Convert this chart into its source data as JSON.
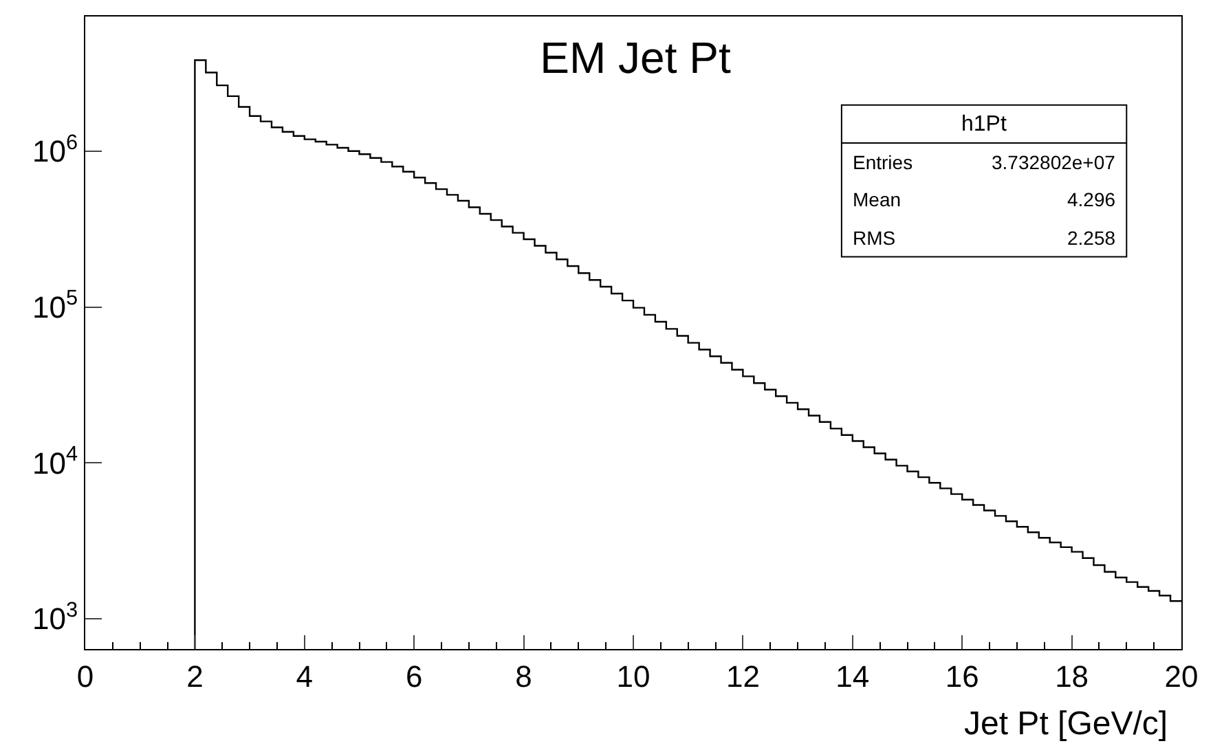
{
  "chart_data": {
    "type": "histogram",
    "title": "EM Jet Pt",
    "xlabel": "Jet Pt [GeV/c]",
    "bins": [
      2.0,
      2.2,
      2.4,
      2.6,
      2.8,
      3.0,
      3.2,
      3.4,
      3.6,
      3.8,
      4.0,
      4.2,
      4.4,
      4.6,
      4.8,
      5.0,
      5.2,
      5.4,
      5.6,
      5.8,
      6.0,
      6.2,
      6.4,
      6.6,
      6.8,
      7.0,
      7.2,
      7.4,
      7.6,
      7.8,
      8.0,
      8.2,
      8.4,
      8.6,
      8.8,
      9.0,
      9.2,
      9.4,
      9.6,
      9.8,
      10.0,
      10.2,
      10.4,
      10.6,
      10.8,
      11.0,
      11.2,
      11.4,
      11.6,
      11.8,
      12.0,
      12.2,
      12.4,
      12.6,
      12.8,
      13.0,
      13.2,
      13.4,
      13.6,
      13.8,
      14.0,
      14.2,
      14.4,
      14.6,
      14.8,
      15.0,
      15.2,
      15.4,
      15.6,
      15.8,
      16.0,
      16.2,
      16.4,
      16.6,
      16.8,
      17.0,
      17.2,
      17.4,
      17.6,
      17.8,
      18.0,
      18.2,
      18.4,
      18.6,
      18.8,
      19.0,
      19.2,
      19.4,
      19.6,
      19.8,
      20.0
    ],
    "values": [
      3830000,
      3190000,
      2640000,
      2250000,
      1920000,
      1680000,
      1550000,
      1420000,
      1330000,
      1250000,
      1190000,
      1150000,
      1100000,
      1050000,
      1000000,
      955000,
      904000,
      851000,
      796000,
      738000,
      676000,
      624000,
      570000,
      524000,
      480000,
      436000,
      396000,
      361000,
      328000,
      299000,
      272000,
      247000,
      223000,
      202000,
      183000,
      165000,
      149000,
      135000,
      122000,
      110000,
      98900,
      89100,
      80400,
      72400,
      65300,
      58900,
      53300,
      48300,
      43800,
      39600,
      35900,
      32500,
      29500,
      26800,
      24300,
      22100,
      20100,
      18300,
      16600,
      15100,
      13800,
      12600,
      11500,
      10500,
      9590,
      8810,
      8090,
      7450,
      6860,
      6310,
      5810,
      5370,
      4950,
      4570,
      4220,
      3890,
      3590,
      3310,
      3090,
      2880,
      2690,
      2450,
      2210,
      2000,
      1840,
      1720,
      1600,
      1510,
      1410,
      1300
    ],
    "color": "#000000",
    "log": "y",
    "xlim": [
      0,
      20
    ],
    "xticks": [
      0,
      2,
      4,
      6,
      8,
      10,
      12,
      14,
      16,
      18,
      20
    ],
    "ylim": [
      640,
      7300000
    ],
    "yticks": [
      {
        "value": 1000,
        "label": "10$^{3}$"
      },
      {
        "value": 10000,
        "label": "10$^{4}$"
      },
      {
        "value": 100000,
        "label": "10$^{5}$"
      },
      {
        "value": 1000000,
        "label": "10$^{6}$"
      }
    ],
    "annotations": [
      "h1Pt",
      "Entries",
      "3.732802e+07",
      "Mean",
      "4.296",
      "RMS",
      "2.258"
    ]
  }
}
